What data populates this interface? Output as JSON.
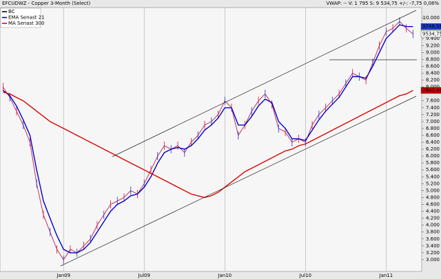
{
  "chart_data": {
    "type": "line",
    "title": "EFCUDWZ - Copper 3-Month (Select)",
    "subtitle": "VWAP: --  V: 1 795  S: 9 534,75  +/-: -7,75  0,08%",
    "categories": [
      null,
      null,
      null,
      null,
      null,
      null,
      null,
      null,
      null,
      "Jan09",
      null,
      null,
      null,
      null,
      null,
      null,
      null,
      null,
      null,
      null,
      null,
      "Jul09",
      null,
      null,
      null,
      null,
      null,
      null,
      null,
      null,
      null,
      null,
      null,
      "Jan10",
      null,
      null,
      null,
      null,
      null,
      null,
      null,
      null,
      null,
      null,
      null,
      "Jul10",
      null,
      null,
      null,
      null,
      null,
      null,
      null,
      null,
      null,
      null,
      null,
      "Jan11",
      null,
      null,
      null,
      null
    ],
    "series": [
      {
        "name": "BC",
        "color": "#c03060",
        "legend_color": "#000000",
        "last_label": "9534,75",
        "tag_color": "#ffffff",
        "values": [
          8000,
          7700,
          7300,
          6900,
          6400,
          5200,
          4300,
          3800,
          3300,
          3000,
          3300,
          3200,
          3400,
          3600,
          4000,
          4300,
          4600,
          4700,
          4800,
          5000,
          4900,
          5200,
          5600,
          6000,
          6300,
          6200,
          6300,
          6100,
          6400,
          6600,
          6900,
          7000,
          7200,
          7600,
          7400,
          6600,
          6900,
          7300,
          7600,
          7800,
          7500,
          6800,
          6700,
          6400,
          6500,
          6400,
          6900,
          7200,
          7400,
          7600,
          7800,
          8100,
          8400,
          8300,
          8200,
          8700,
          9200,
          9600,
          9700,
          9900,
          9700,
          9535
        ]
      },
      {
        "name": "EMA  Senast 21",
        "color": "#0000cc",
        "legend_color": "#0000cc",
        "last_label": "9748,56",
        "tag_color": "#1a3cc8",
        "values": [
          7900,
          7750,
          7450,
          7050,
          6600,
          5600,
          4700,
          4200,
          3700,
          3300,
          3200,
          3200,
          3300,
          3500,
          3800,
          4100,
          4400,
          4600,
          4700,
          4850,
          4900,
          5100,
          5400,
          5800,
          6100,
          6200,
          6250,
          6200,
          6300,
          6500,
          6750,
          6900,
          7100,
          7400,
          7400,
          6900,
          6900,
          7150,
          7450,
          7650,
          7550,
          7000,
          6800,
          6500,
          6500,
          6450,
          6750,
          7050,
          7300,
          7500,
          7700,
          8000,
          8300,
          8300,
          8250,
          8600,
          9000,
          9400,
          9600,
          9800,
          9750,
          9749
        ]
      },
      {
        "name": "MA  Senast 300",
        "color": "#dd0000",
        "legend_color": "#dd0000",
        "last_label": "7902,44",
        "tag_color": "#cc0000",
        "values": [
          7850,
          7800,
          7700,
          7600,
          7450,
          7300,
          7150,
          7000,
          6900,
          6800,
          6700,
          6600,
          6500,
          6400,
          6300,
          6200,
          6100,
          6000,
          5900,
          5800,
          5700,
          5600,
          5500,
          5400,
          5300,
          5200,
          5100,
          5000,
          4900,
          4850,
          4800,
          4850,
          4950,
          5100,
          5250,
          5400,
          5550,
          5650,
          5750,
          5850,
          5950,
          6050,
          6150,
          6200,
          6300,
          6350,
          6450,
          6550,
          6650,
          6750,
          6850,
          6950,
          7050,
          7150,
          7250,
          7350,
          7450,
          7550,
          7650,
          7750,
          7800,
          7902
        ]
      }
    ],
    "ylim": [
      2660,
      10300
    ],
    "yticks": [
      {
        "value": 3000,
        "label": "3.000"
      },
      {
        "value": 3200,
        "label": "3.200"
      },
      {
        "value": 3400,
        "label": "3.400"
      },
      {
        "value": 3600,
        "label": "3.600"
      },
      {
        "value": 3800,
        "label": "3.800"
      },
      {
        "value": 4000,
        "label": "4.000"
      },
      {
        "value": 4200,
        "label": "4.200"
      },
      {
        "value": 4400,
        "label": "4.400"
      },
      {
        "value": 4600,
        "label": "4.600"
      },
      {
        "value": 4800,
        "label": "4.800"
      },
      {
        "value": 5000,
        "label": "5.000"
      },
      {
        "value": 5200,
        "label": "5.200"
      },
      {
        "value": 5400,
        "label": "5.400"
      },
      {
        "value": 5600,
        "label": "5.600"
      },
      {
        "value": 5800,
        "label": "5.800"
      },
      {
        "value": 6000,
        "label": "6.000"
      },
      {
        "value": 6200,
        "label": "6.200"
      },
      {
        "value": 6400,
        "label": "6.400"
      },
      {
        "value": 6600,
        "label": "6.600"
      },
      {
        "value": 6800,
        "label": "6.800"
      },
      {
        "value": 7000,
        "label": "7.000"
      },
      {
        "value": 7200,
        "label": "7.200"
      },
      {
        "value": 7400,
        "label": "7.400"
      },
      {
        "value": 7600,
        "label": "7.600"
      },
      {
        "value": 8000,
        "label": "8.000"
      },
      {
        "value": 8200,
        "label": "8.200"
      },
      {
        "value": 8400,
        "label": "8.400"
      },
      {
        "value": 8600,
        "label": "8.600"
      },
      {
        "value": 8800,
        "label": "8.800"
      },
      {
        "value": 9000,
        "label": "9.000"
      },
      {
        "value": 9200,
        "label": "9.200"
      },
      {
        "value": 9400,
        "label": "9.400"
      },
      {
        "value": 10000,
        "label": "10.000"
      }
    ]
  }
}
